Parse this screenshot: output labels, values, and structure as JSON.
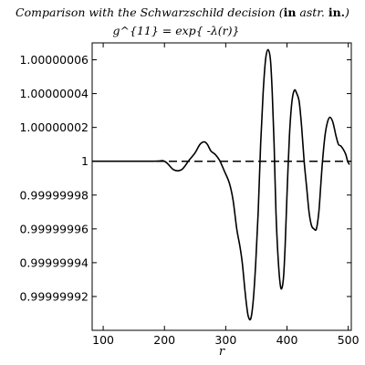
{
  "chart_data": {
    "type": "line",
    "title_parts": [
      {
        "text": "Comparison with the Schwarzschild decision (",
        "style": "italic"
      },
      {
        "text": "in",
        "style": "bold"
      },
      {
        "text": " astr. ",
        "style": "italic"
      },
      {
        "text": "in.",
        "style": "bold"
      },
      {
        "text": ")",
        "style": "italic"
      }
    ],
    "subtitle": "g^{11} = exp{ -λ(r)}",
    "xlabel": "r",
    "ylabel": "",
    "xlim": [
      82,
      505
    ],
    "ylim": [
      0.9999999,
      1.00000007
    ],
    "x_ticks": [
      100,
      200,
      300,
      400,
      500
    ],
    "y_ticks": [
      0.99999992,
      0.99999994,
      0.99999996,
      0.99999998,
      1,
      1.00000002,
      1.00000004,
      1.00000006
    ],
    "y_tick_labels": [
      "0.99999992",
      "0.99999994",
      "0.99999996",
      "0.99999998",
      "1",
      "1.00000002",
      "1.00000004",
      "1.00000006"
    ],
    "grid": false,
    "series": [
      {
        "style": "solid",
        "color": "#000000",
        "x": [
          82,
          180,
          200,
          215,
          228,
          240,
          250,
          258,
          265,
          270,
          276,
          283,
          290,
          298,
          306,
          312,
          318,
          323,
          327,
          331,
          334,
          337,
          341,
          345,
          349,
          353,
          357,
          361,
          365,
          369,
          373,
          376,
          379,
          382,
          386,
          390,
          394,
          397,
          400,
          404,
          408,
          412,
          416,
          420,
          424,
          428,
          432,
          436,
          440,
          444,
          448,
          452,
          455,
          458,
          462,
          466,
          470,
          474,
          477,
          480,
          484,
          488,
          492,
          496,
          499,
          502
        ],
        "y": [
          1,
          1,
          1,
          0.999999995,
          0.999999995,
          1.0000000005,
          1.000000005,
          1.00000001,
          1.0000000115,
          1.00000001,
          1.000000006,
          1.000000004,
          1.0000000005,
          0.999999994,
          0.999999987,
          0.999999977,
          0.99999996,
          0.99999995,
          0.99999994,
          0.999999925,
          0.999999915,
          0.999999908,
          0.999999907,
          0.999999918,
          0.99999994,
          0.99999997,
          1.00000001,
          1.00000004,
          1.00000006,
          1.000000066,
          1.00000006,
          1.00000004,
          1.00000001,
          0.99999997,
          0.99999994,
          0.999999925,
          0.99999993,
          0.99999995,
          0.99999998,
          1.000000015,
          1.000000035,
          1.000000042,
          1.00000004,
          1.000000035,
          1.00000002,
          1.0,
          0.999999985,
          0.99999997,
          0.999999962,
          0.99999996,
          0.99999996,
          0.99999997,
          0.999999985,
          1.0,
          1.000000015,
          1.000000023,
          1.000000026,
          1.000000024,
          1.00000002,
          1.000000015,
          1.00000001,
          1.000000009,
          1.000000007,
          1.000000004,
          1.0,
          0.999999998
        ]
      },
      {
        "style": "dashed",
        "color": "#000000",
        "x": [
          82,
          505
        ],
        "y": [
          1,
          1
        ]
      }
    ]
  }
}
